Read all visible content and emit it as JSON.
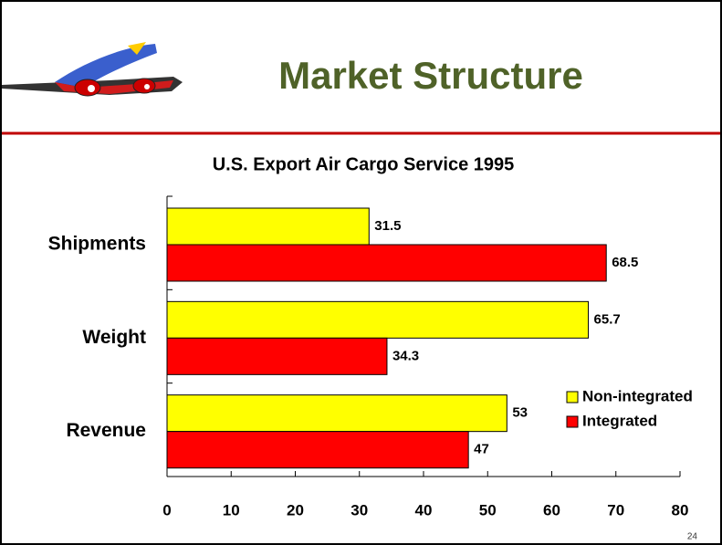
{
  "slide": {
    "title": "Market Structure",
    "page_number": "24"
  },
  "chart_data": {
    "type": "bar",
    "orientation": "horizontal",
    "title": "U.S. Export Air Cargo Service 1995",
    "categories": [
      "Shipments",
      "Weight",
      "Revenue"
    ],
    "series": [
      {
        "name": "Non-integrated",
        "color": "#ffff00",
        "values": [
          31.5,
          65.7,
          53
        ]
      },
      {
        "name": "Integrated",
        "color": "#ff0000",
        "values": [
          68.5,
          34.3,
          47
        ]
      }
    ],
    "xlim": [
      0,
      80
    ],
    "xticks": [
      0,
      10,
      20,
      30,
      40,
      50,
      60,
      70,
      80
    ],
    "legend": "right",
    "grid": false
  }
}
